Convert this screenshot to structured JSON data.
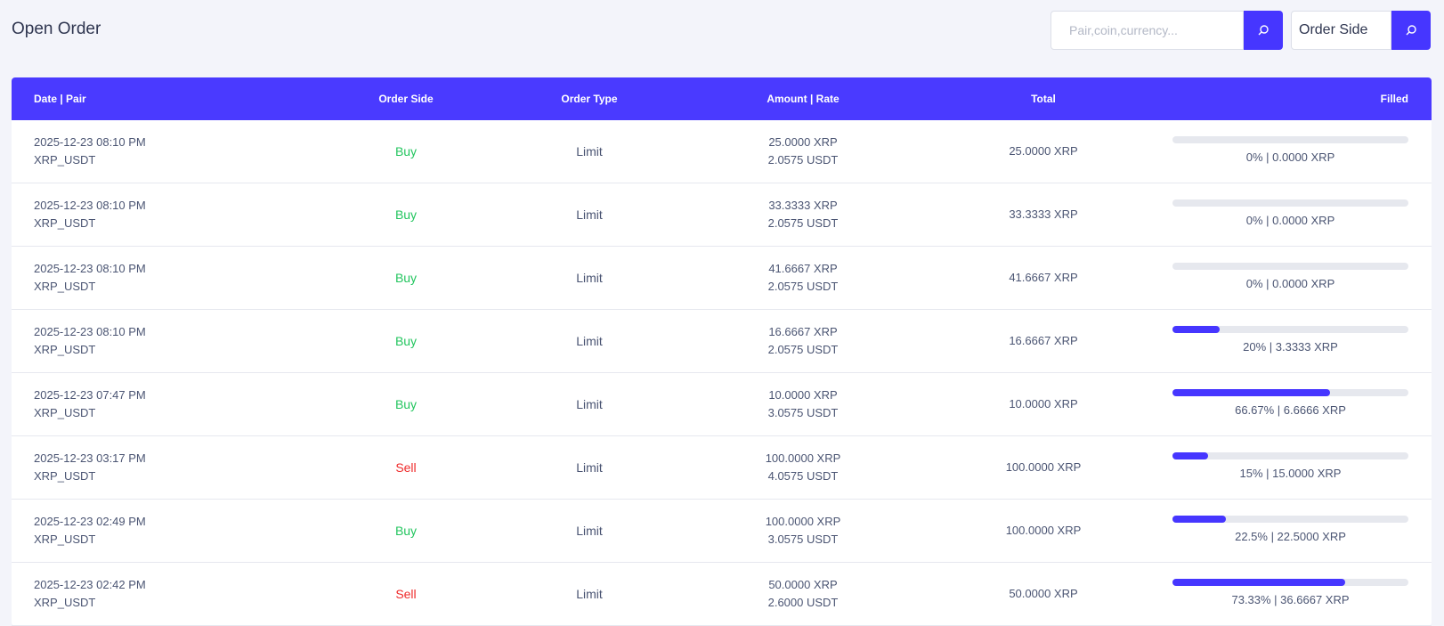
{
  "header": {
    "title": "Open Order",
    "search_placeholder": "Pair,coin,currency...",
    "select_label": "Order Side"
  },
  "table": {
    "columns": [
      "Date | Pair",
      "Order Side",
      "Order Type",
      "Amount | Rate",
      "Total",
      "Filled"
    ],
    "rows": [
      {
        "date": "2025-12-23 08:10 PM",
        "pair": "XRP_USDT",
        "side": "Buy",
        "side_color": "#22c55e",
        "type": "Limit",
        "amount": "25.0000 XRP",
        "rate": "2.0575 USDT",
        "total": "25.0000 XRP",
        "filled": {
          "value": 0,
          "label": "0% | 0.0000 XRP"
        }
      },
      {
        "date": "2025-12-23 08:10 PM",
        "pair": "XRP_USDT",
        "side": "Buy",
        "side_color": "#22c55e",
        "type": "Limit",
        "amount": "33.3333 XRP",
        "rate": "2.0575 USDT",
        "total": "33.3333 XRP",
        "filled": {
          "value": 0,
          "label": "0% | 0.0000 XRP"
        }
      },
      {
        "date": "2025-12-23 08:10 PM",
        "pair": "XRP_USDT",
        "side": "Buy",
        "side_color": "#22c55e",
        "type": "Limit",
        "amount": "41.6667 XRP",
        "rate": "2.0575 USDT",
        "total": "41.6667 XRP",
        "filled": {
          "value": 0,
          "label": "0% | 0.0000 XRP"
        }
      },
      {
        "date": "2025-12-23 08:10 PM",
        "pair": "XRP_USDT",
        "side": "Buy",
        "side_color": "#22c55e",
        "type": "Limit",
        "amount": "16.6667 XRP",
        "rate": "2.0575 USDT",
        "total": "16.6667 XRP",
        "filled": {
          "value": 20,
          "label": "20% | 3.3333 XRP"
        }
      },
      {
        "date": "2025-12-23 07:47 PM",
        "pair": "XRP_USDT",
        "side": "Buy",
        "side_color": "#22c55e",
        "type": "Limit",
        "amount": "10.0000 XRP",
        "rate": "3.0575 USDT",
        "total": "10.0000 XRP",
        "filled": {
          "value": 66.67,
          "label": "66.67% | 6.6666 XRP"
        }
      },
      {
        "date": "2025-12-23 03:17 PM",
        "pair": "XRP_USDT",
        "side": "Sell",
        "side_color": "#ef2b2b",
        "type": "Limit",
        "amount": "100.0000 XRP",
        "rate": "4.0575 USDT",
        "total": "100.0000 XRP",
        "filled": {
          "value": 15,
          "label": "15% | 15.0000 XRP"
        }
      },
      {
        "date": "2025-12-23 02:49 PM",
        "pair": "XRP_USDT",
        "side": "Buy",
        "side_color": "#22c55e",
        "type": "Limit",
        "amount": "100.0000 XRP",
        "rate": "3.0575 USDT",
        "total": "100.0000 XRP",
        "filled": {
          "value": 22.5,
          "label": "22.5% | 22.5000 XRP"
        }
      },
      {
        "date": "2025-12-23 02:42 PM",
        "pair": "XRP_USDT",
        "side": "Sell",
        "side_color": "#ef2b2b",
        "type": "Limit",
        "amount": "50.0000 XRP",
        "rate": "2.6000 USDT",
        "total": "50.0000 XRP",
        "filled": {
          "value": 73.33,
          "label": "73.33% | 36.6667 XRP"
        }
      }
    ]
  }
}
